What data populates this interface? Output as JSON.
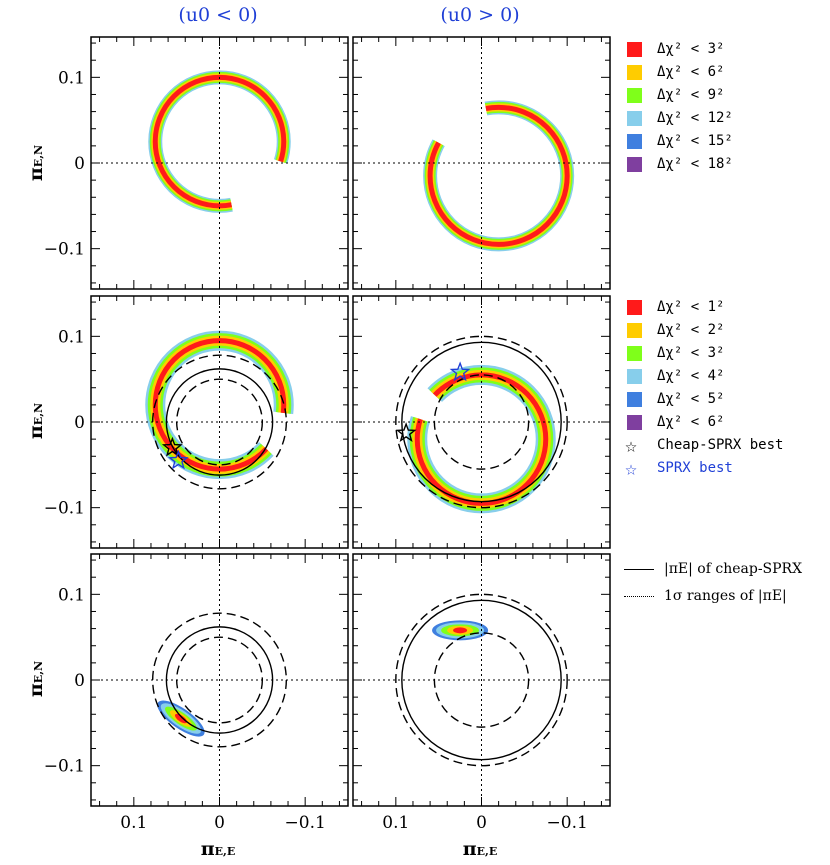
{
  "column_titles": [
    "(u0 < 0)",
    "(u0 > 0)"
  ],
  "axis_labels": {
    "y": "π_E,N",
    "y_main": "π",
    "y_sub": "E,N",
    "x_main": "π",
    "x_sub": "E,E"
  },
  "legend_top": [
    {
      "label": "Δχ² <  3²",
      "color": "#ff1a1a"
    },
    {
      "label": "Δχ² <  6²",
      "color": "#ffcc00"
    },
    {
      "label": "Δχ² <  9²",
      "color": "#7fff1a"
    },
    {
      "label": "Δχ² < 12²",
      "color": "#87ceeb"
    },
    {
      "label": "Δχ² < 15²",
      "color": "#3f7fdf"
    },
    {
      "label": "Δχ² < 18²",
      "color": "#7f3f9f"
    }
  ],
  "legend_mid": [
    {
      "label": "Δχ² < 1²",
      "color": "#ff1a1a"
    },
    {
      "label": "Δχ² < 2²",
      "color": "#ffcc00"
    },
    {
      "label": "Δχ² < 3²",
      "color": "#7fff1a"
    },
    {
      "label": "Δχ² < 4²",
      "color": "#87ceeb"
    },
    {
      "label": "Δχ² < 5²",
      "color": "#3f7fdf"
    },
    {
      "label": "Δχ² < 6²",
      "color": "#7f3f9f"
    }
  ],
  "legend_markers": [
    {
      "label": "Cheap-SPRX best",
      "color": "#000000"
    },
    {
      "label": "SPRX best",
      "color": "#1f3fd6"
    }
  ],
  "legend_lines": [
    {
      "label": "|πE| of cheap-SPRX",
      "style": "solid"
    },
    {
      "label": "1σ ranges of |πE|",
      "style": "dotted"
    }
  ],
  "chart_data": {
    "type": "heatmap",
    "description_axes": {
      "x_ticks": [
        0.1,
        0,
        -0.1
      ],
      "y_ticks": [
        0.1,
        0,
        -0.1
      ],
      "xlim": [
        0.15,
        -0.15
      ],
      "ylim": [
        -0.15,
        0.15
      ],
      "x_reversed": true
    },
    "tick_labels": {
      "x": [
        "0.1",
        "0",
        "−0.1"
      ],
      "y": [
        "0.1",
        "0",
        "−0.1"
      ]
    },
    "cheap_sprx_radius": {
      "u0_neg": 0.062,
      "u0_pos": 0.093
    },
    "sigma_range": {
      "u0_neg": [
        0.05,
        0.078
      ],
      "u0_pos": [
        0.055,
        0.1
      ]
    },
    "rows": [
      {
        "row": "top",
        "panels": [
          {
            "u0": "neg",
            "ring_center": [
              0.0,
              0.025
            ],
            "ring_radius": 0.075
          },
          {
            "u0": "pos",
            "ring_center": [
              -0.02,
              -0.015
            ],
            "ring_radius": 0.08
          }
        ]
      },
      {
        "row": "middle",
        "panels": [
          {
            "u0": "neg",
            "ring_center": [
              0.0,
              0.02
            ],
            "ring_radius": 0.075,
            "cheap_sprx_best": [
              0.055,
              -0.03
            ],
            "sprx_best": [
              0.048,
              -0.045
            ]
          },
          {
            "u0": "pos",
            "ring_center": [
              0.0,
              -0.02
            ],
            "ring_radius": 0.075,
            "cheap_sprx_best": [
              0.088,
              -0.013
            ],
            "sprx_best": [
              0.025,
              0.058
            ]
          }
        ]
      },
      {
        "row": "bottom",
        "panels": [
          {
            "u0": "neg",
            "blob_center": [
              0.045,
              -0.045
            ]
          },
          {
            "u0": "pos",
            "blob_center": [
              0.025,
              0.058
            ]
          }
        ]
      }
    ]
  }
}
